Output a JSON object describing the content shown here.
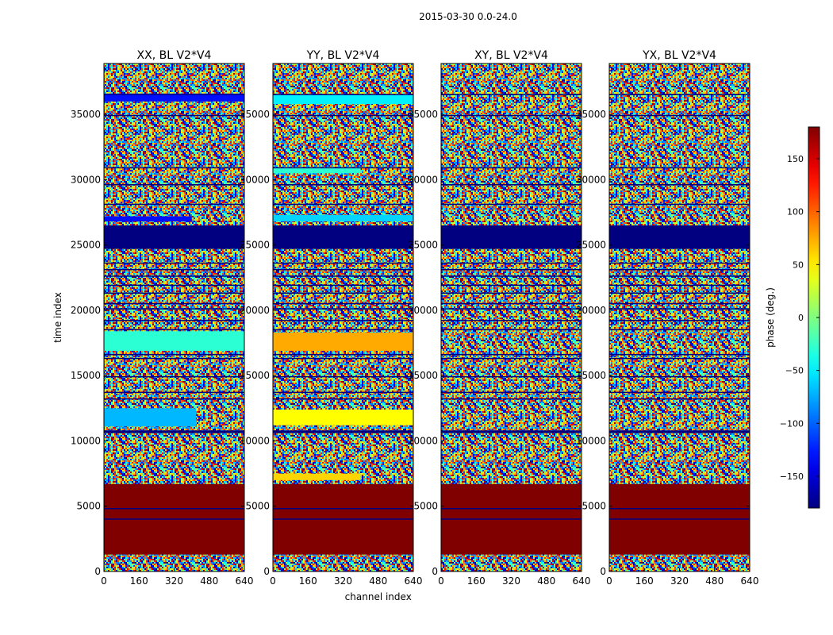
{
  "chart_data": {
    "type": "heatmap",
    "suptitle": "2015-03-30 0.0-24.0",
    "xlabel": "channel index",
    "ylabel": "time index",
    "xlim": [
      0,
      640
    ],
    "ylim": [
      0,
      38900
    ],
    "xticks": [
      0,
      160,
      320,
      480,
      640
    ],
    "yticks": [
      0,
      5000,
      10000,
      15000,
      20000,
      25000,
      30000,
      35000
    ],
    "colorbar": {
      "label": "phase (deg.)",
      "range": [
        -180,
        180
      ],
      "ticks": [
        -150,
        -100,
        -50,
        0,
        50,
        100,
        150
      ],
      "colormap": "jet"
    },
    "panels": [
      {
        "title": "XX, BL V2*V4",
        "bands": [
          {
            "y": [
              1300,
              6700
            ],
            "value": 180
          },
          {
            "y": [
              10600,
              10800
            ],
            "value": -180
          },
          {
            "y": [
              11100,
              12500
            ],
            "value": -70,
            "channels": [
              0,
              420
            ]
          },
          {
            "y": [
              16900,
              18400
            ],
            "value": -30
          },
          {
            "y": [
              24700,
              26500
            ],
            "value": -180
          },
          {
            "y": [
              26800,
              27200
            ],
            "value": -130,
            "channels": [
              0,
              400
            ]
          },
          {
            "y": [
              36000,
              36600
            ],
            "value": -130
          }
        ]
      },
      {
        "title": "YY, BL V2*V4",
        "bands": [
          {
            "y": [
              1300,
              6700
            ],
            "value": 180
          },
          {
            "y": [
              7000,
              7500
            ],
            "value": 60,
            "channels": [
              0,
              400
            ]
          },
          {
            "y": [
              10600,
              10800
            ],
            "value": -180
          },
          {
            "y": [
              11200,
              12400
            ],
            "value": 45
          },
          {
            "y": [
              16900,
              18300
            ],
            "value": 75
          },
          {
            "y": [
              24700,
              26500
            ],
            "value": -180
          },
          {
            "y": [
              26800,
              27300
            ],
            "value": -60
          },
          {
            "y": [
              30500,
              30900
            ],
            "value": -30,
            "channels": [
              0,
              400
            ]
          },
          {
            "y": [
              35800,
              36500
            ],
            "value": -50
          }
        ]
      },
      {
        "title": "XY, BL V2*V4",
        "bands": [
          {
            "y": [
              1300,
              6700
            ],
            "value": 180
          },
          {
            "y": [
              10600,
              10800
            ],
            "value": -180
          },
          {
            "y": [
              24700,
              26500
            ],
            "value": -180
          }
        ]
      },
      {
        "title": "YX, BL V2*V4",
        "bands": [
          {
            "y": [
              1300,
              6700
            ],
            "value": 180
          },
          {
            "y": [
              10600,
              10800
            ],
            "value": -180
          },
          {
            "y": [
              24700,
              26500
            ],
            "value": -180
          }
        ]
      }
    ],
    "dark_lines": [
      4000,
      4800,
      13200,
      13700,
      14900,
      16300,
      16600,
      18500,
      19200,
      20100,
      20500,
      21300,
      21900,
      22600,
      23100,
      23600,
      28100,
      29600,
      30900,
      34900,
      36500
    ]
  }
}
